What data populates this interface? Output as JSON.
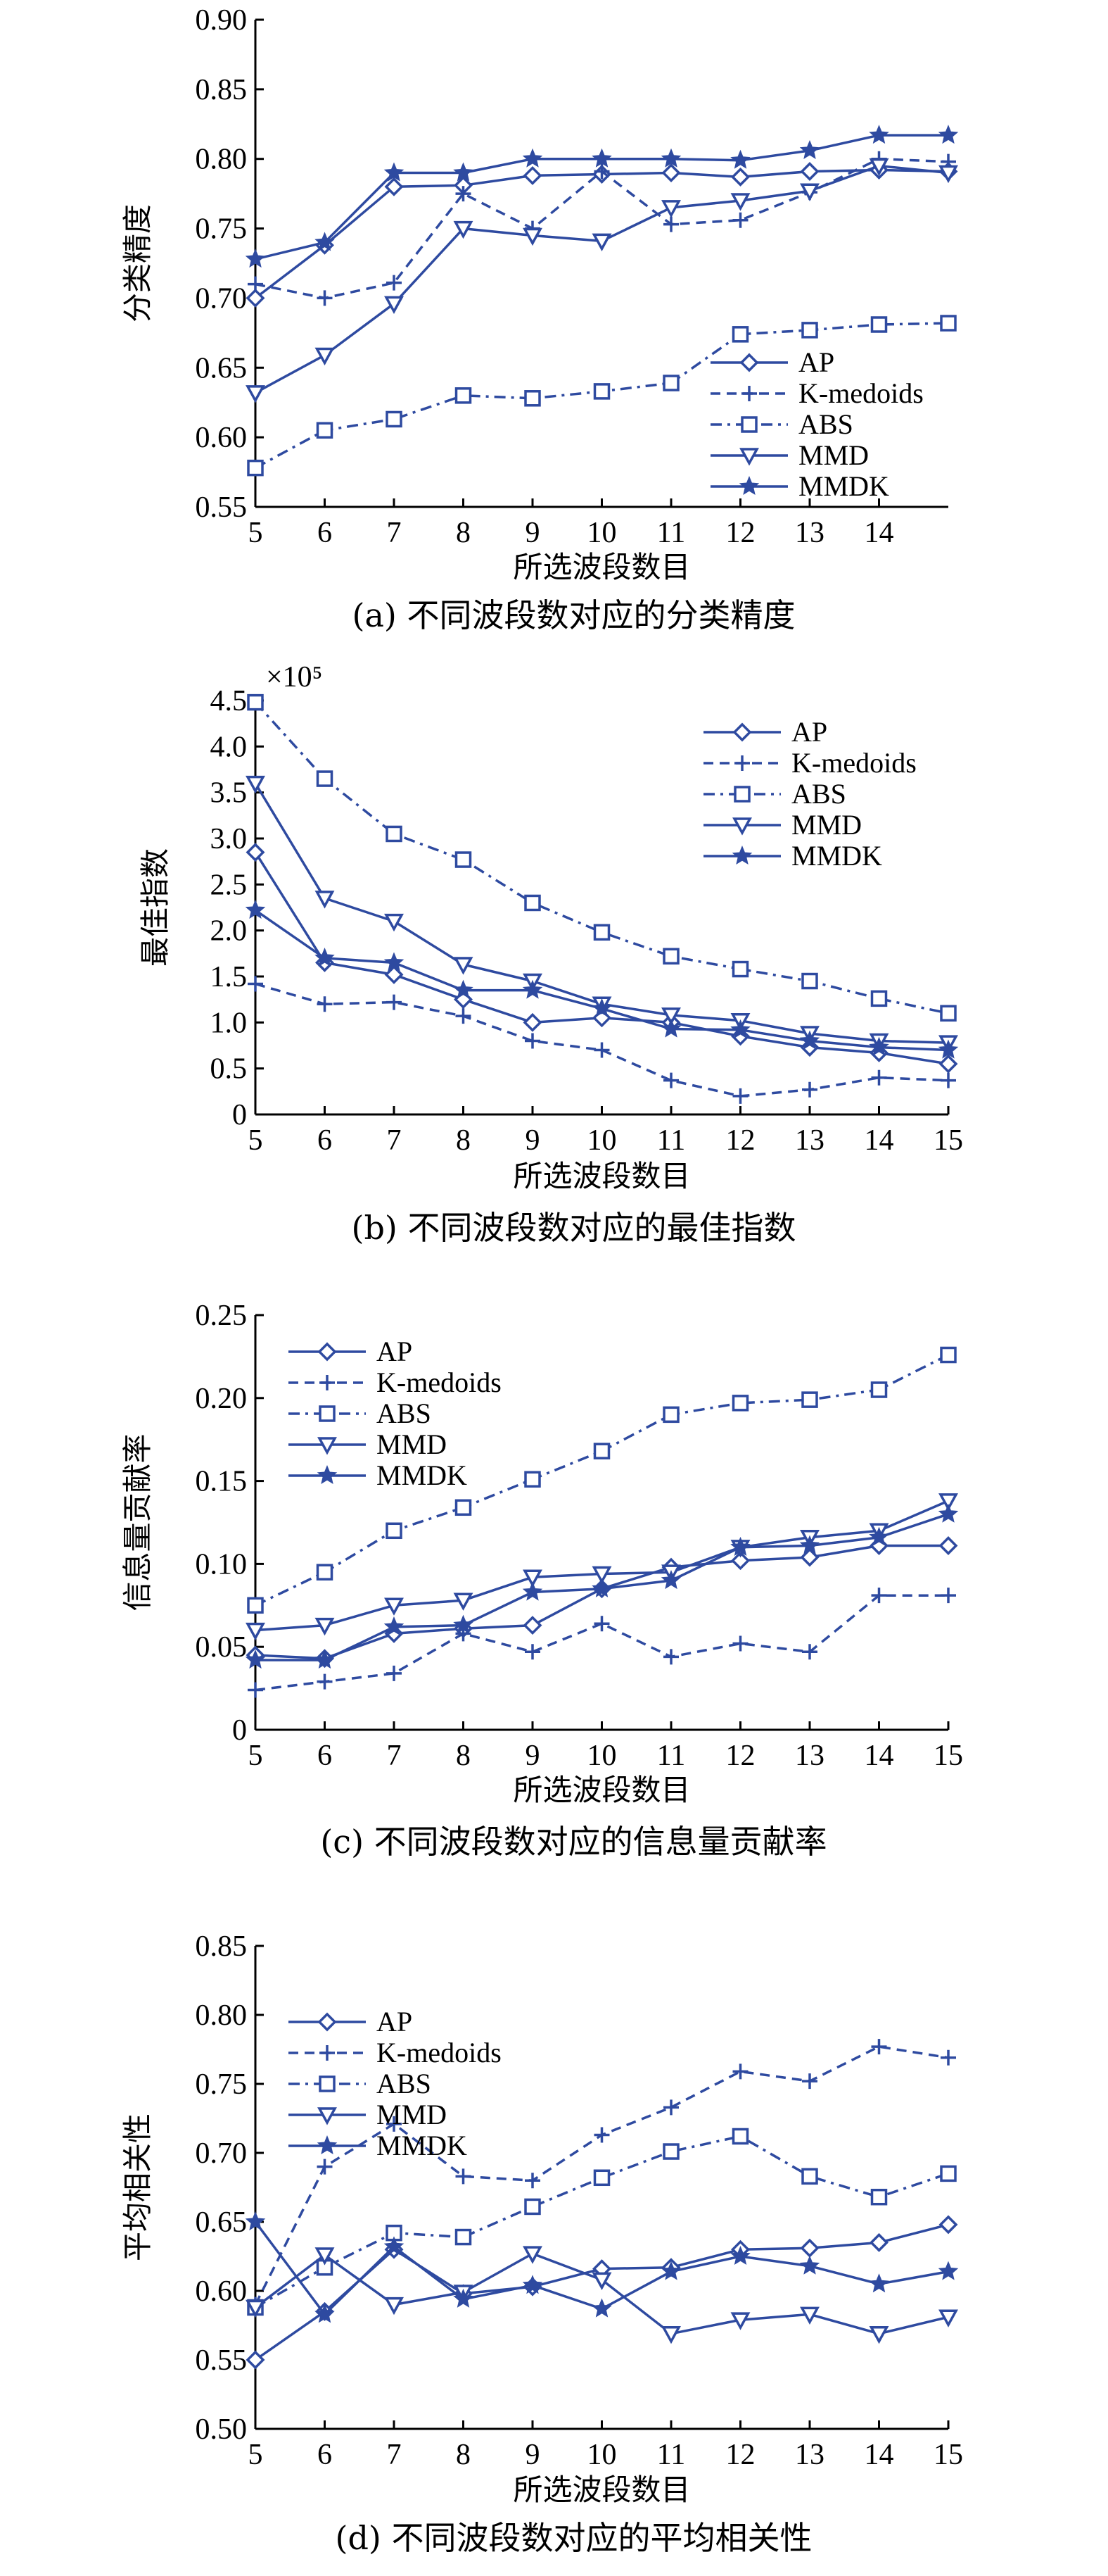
{
  "colors": {
    "series": "#2e4aa0",
    "axis": "#000000"
  },
  "chart_data": [
    {
      "type": "line",
      "panel": "a",
      "title": "(a) 不同波段数对应的分类精度",
      "xlabel": "所选波段数目",
      "ylabel": "分类精度",
      "x": [
        5,
        6,
        7,
        8,
        9,
        10,
        11,
        12,
        13,
        14,
        15
      ],
      "xticks": [
        "5",
        "6",
        "7",
        "8",
        "9",
        "10",
        "11",
        "12",
        "13",
        "14"
      ],
      "xlim": [
        5,
        15
      ],
      "ylim": [
        0.55,
        0.9
      ],
      "yticks": [
        "0.55",
        "0.60",
        "0.65",
        "0.70",
        "0.75",
        "0.80",
        "0.85",
        "0.90"
      ],
      "legend_pos": "bottom-right",
      "series": [
        {
          "name": "AP",
          "marker": "diamond",
          "dash": "solid",
          "values": [
            0.7,
            0.738,
            0.78,
            0.781,
            0.788,
            0.789,
            0.79,
            0.787,
            0.791,
            0.792,
            0.791
          ]
        },
        {
          "name": "K-medoids",
          "marker": "plus",
          "dash": "dashed",
          "values": [
            0.71,
            0.7,
            0.711,
            0.775,
            0.75,
            0.791,
            0.753,
            0.756,
            0.776,
            0.8,
            0.798
          ]
        },
        {
          "name": "ABS",
          "marker": "square",
          "dash": "dashdot",
          "values": [
            0.578,
            0.605,
            0.613,
            0.63,
            0.628,
            0.633,
            0.639,
            0.674,
            0.677,
            0.681,
            0.682
          ]
        },
        {
          "name": "MMD",
          "marker": "triangle-down",
          "dash": "solid",
          "values": [
            0.632,
            0.659,
            0.696,
            0.75,
            0.745,
            0.741,
            0.765,
            0.77,
            0.777,
            0.795,
            0.79
          ]
        },
        {
          "name": "MMDK",
          "marker": "star",
          "dash": "solid",
          "values": [
            0.728,
            0.74,
            0.79,
            0.79,
            0.8,
            0.8,
            0.8,
            0.799,
            0.806,
            0.817,
            0.817
          ]
        }
      ]
    },
    {
      "type": "line",
      "panel": "b",
      "title": "(b) 不同波段数对应的最佳指数",
      "xlabel": "所选波段数目",
      "ylabel": "最佳指数",
      "multiplier": "×10⁵",
      "x": [
        5,
        6,
        7,
        8,
        9,
        10,
        11,
        12,
        13,
        14,
        15
      ],
      "xticks": [
        "5",
        "6",
        "7",
        "8",
        "9",
        "10",
        "11",
        "12",
        "13",
        "14",
        "15"
      ],
      "xlim": [
        5,
        15
      ],
      "ylim": [
        0,
        4.5
      ],
      "yticks": [
        "0",
        "0.5",
        "1.0",
        "1.5",
        "2.0",
        "2.5",
        "3.0",
        "3.5",
        "4.0",
        "4.5"
      ],
      "legend_pos": "top-right",
      "series": [
        {
          "name": "AP",
          "marker": "diamond",
          "dash": "solid",
          "values": [
            2.85,
            1.65,
            1.52,
            1.25,
            1.0,
            1.05,
            1.0,
            0.85,
            0.73,
            0.67,
            0.55
          ]
        },
        {
          "name": "K-medoids",
          "marker": "plus",
          "dash": "dashed",
          "values": [
            1.42,
            1.2,
            1.22,
            1.07,
            0.8,
            0.7,
            0.37,
            0.2,
            0.27,
            0.4,
            0.37
          ]
        },
        {
          "name": "ABS",
          "marker": "square",
          "dash": "dashdot",
          "values": [
            4.48,
            3.65,
            3.05,
            2.77,
            2.3,
            1.98,
            1.72,
            1.58,
            1.45,
            1.26,
            1.1
          ]
        },
        {
          "name": "MMD",
          "marker": "triangle-down",
          "dash": "solid",
          "values": [
            3.6,
            2.35,
            2.1,
            1.63,
            1.45,
            1.2,
            1.08,
            1.02,
            0.88,
            0.8,
            0.78
          ]
        },
        {
          "name": "MMDK",
          "marker": "star",
          "dash": "solid",
          "values": [
            2.22,
            1.7,
            1.65,
            1.35,
            1.35,
            1.15,
            0.93,
            0.92,
            0.8,
            0.73,
            0.7
          ]
        }
      ]
    },
    {
      "type": "line",
      "panel": "c",
      "title": "(c) 不同波段数对应的信息量贡献率",
      "xlabel": "所选波段数目",
      "ylabel": "信息量贡献率",
      "x": [
        5,
        6,
        7,
        8,
        9,
        10,
        11,
        12,
        13,
        14,
        15
      ],
      "xticks": [
        "5",
        "6",
        "7",
        "8",
        "9",
        "10",
        "11",
        "12",
        "13",
        "14",
        "15"
      ],
      "xlim": [
        5,
        15
      ],
      "ylim": [
        0,
        0.25
      ],
      "yticks": [
        "0",
        "0.05",
        "0.10",
        "0.15",
        "0.20",
        "0.25"
      ],
      "legend_pos": "top-left",
      "series": [
        {
          "name": "AP",
          "marker": "diamond",
          "dash": "solid",
          "values": [
            0.045,
            0.043,
            0.058,
            0.061,
            0.063,
            0.085,
            0.098,
            0.102,
            0.104,
            0.111,
            0.111
          ]
        },
        {
          "name": "K-medoids",
          "marker": "plus",
          "dash": "dashed",
          "values": [
            0.024,
            0.029,
            0.034,
            0.058,
            0.047,
            0.064,
            0.044,
            0.052,
            0.047,
            0.081,
            0.081
          ]
        },
        {
          "name": "ABS",
          "marker": "square",
          "dash": "dashdot",
          "values": [
            0.075,
            0.095,
            0.12,
            0.134,
            0.151,
            0.168,
            0.19,
            0.197,
            0.199,
            0.205,
            0.226
          ]
        },
        {
          "name": "MMD",
          "marker": "triangle-down",
          "dash": "solid",
          "values": [
            0.06,
            0.063,
            0.075,
            0.078,
            0.092,
            0.094,
            0.095,
            0.11,
            0.116,
            0.12,
            0.138
          ]
        },
        {
          "name": "MMDK",
          "marker": "star",
          "dash": "solid",
          "values": [
            0.042,
            0.042,
            0.062,
            0.063,
            0.083,
            0.085,
            0.09,
            0.11,
            0.111,
            0.116,
            0.13
          ]
        }
      ]
    },
    {
      "type": "line",
      "panel": "d",
      "title": "(d) 不同波段数对应的平均相关性",
      "xlabel": "所选波段数目",
      "ylabel": "平均相关性",
      "x": [
        5,
        6,
        7,
        8,
        9,
        10,
        11,
        12,
        13,
        14,
        15
      ],
      "xticks": [
        "5",
        "6",
        "7",
        "8",
        "9",
        "10",
        "11",
        "12",
        "13",
        "14",
        "15"
      ],
      "xlim": [
        5,
        15
      ],
      "ylim": [
        0.5,
        0.85
      ],
      "yticks": [
        "0.50",
        "0.55",
        "0.60",
        "0.65",
        "0.70",
        "0.75",
        "0.80",
        "0.85"
      ],
      "legend_pos": "top-left",
      "series": [
        {
          "name": "AP",
          "marker": "diamond",
          "dash": "solid",
          "values": [
            0.55,
            0.585,
            0.63,
            0.598,
            0.603,
            0.616,
            0.617,
            0.63,
            0.631,
            0.635,
            0.648
          ]
        },
        {
          "name": "K-medoids",
          "marker": "plus",
          "dash": "dashed",
          "values": [
            0.59,
            0.69,
            0.721,
            0.683,
            0.68,
            0.713,
            0.733,
            0.759,
            0.752,
            0.777,
            0.769
          ]
        },
        {
          "name": "ABS",
          "marker": "square",
          "dash": "dashdot",
          "values": [
            0.588,
            0.617,
            0.642,
            0.639,
            0.661,
            0.682,
            0.701,
            0.712,
            0.683,
            0.668,
            0.685
          ]
        },
        {
          "name": "MMD",
          "marker": "triangle-down",
          "dash": "solid",
          "values": [
            0.588,
            0.626,
            0.59,
            0.599,
            0.627,
            0.608,
            0.569,
            0.579,
            0.583,
            0.569,
            0.581
          ]
        },
        {
          "name": "MMDK",
          "marker": "star",
          "dash": "solid",
          "values": [
            0.65,
            0.583,
            0.632,
            0.594,
            0.604,
            0.587,
            0.614,
            0.625,
            0.618,
            0.605,
            0.614
          ]
        }
      ]
    }
  ]
}
